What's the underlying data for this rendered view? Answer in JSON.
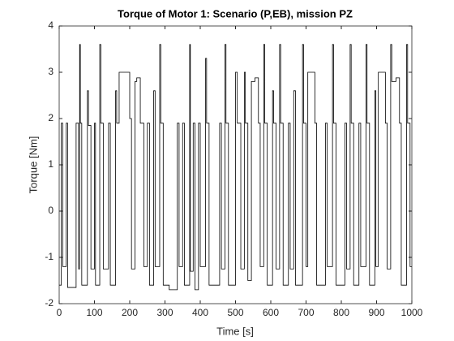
{
  "chart_data": {
    "type": "line",
    "title": "Torque of Motor 1: Scenario (P,EB), mission PZ",
    "xlabel": "Time [s]",
    "ylabel": "Torque [Nm]",
    "x": [
      0,
      6,
      6,
      10,
      10,
      20,
      20,
      24,
      24,
      48,
      48,
      55,
      55,
      58,
      58,
      60,
      60,
      64,
      64,
      80,
      80,
      83,
      83,
      90,
      90,
      100,
      100,
      103,
      103,
      115,
      115,
      118,
      118,
      125,
      125,
      140,
      140,
      145,
      145,
      160,
      160,
      163,
      163,
      170,
      170,
      200,
      200,
      205,
      205,
      215,
      215,
      220,
      220,
      230,
      230,
      240,
      240,
      250,
      250,
      256,
      256,
      268,
      268,
      272,
      272,
      285,
      285,
      288,
      288,
      295,
      295,
      312,
      312,
      335,
      335,
      340,
      340,
      350,
      350,
      355,
      355,
      370,
      370,
      372,
      372,
      380,
      380,
      385,
      385,
      395,
      395,
      400,
      400,
      415,
      415,
      418,
      418,
      425,
      425,
      455,
      455,
      460,
      460,
      470,
      470,
      473,
      473,
      480,
      480,
      500,
      500,
      505,
      505,
      515,
      515,
      525,
      525,
      528,
      528,
      535,
      535,
      545,
      545,
      555,
      555,
      565,
      565,
      570,
      570,
      580,
      580,
      583,
      583,
      590,
      590,
      605,
      605,
      608,
      608,
      615,
      615,
      625,
      625,
      628,
      628,
      635,
      635,
      650,
      650,
      655,
      655,
      665,
      665,
      670,
      670,
      690,
      690,
      693,
      693,
      700,
      700,
      705,
      705,
      725,
      725,
      730,
      730,
      755,
      755,
      760,
      760,
      775,
      775,
      778,
      778,
      785,
      785,
      810,
      810,
      815,
      815,
      825,
      825,
      828,
      828,
      835,
      835,
      850,
      850,
      855,
      855,
      870,
      870,
      873,
      873,
      880,
      880,
      895,
      895,
      898,
      898,
      905,
      905,
      925,
      925,
      930,
      930,
      940,
      940,
      943,
      943,
      955,
      955,
      965,
      965,
      970,
      970,
      985,
      985,
      988,
      988,
      995,
      995,
      1000
    ],
    "series": [
      {
        "name": "Torque",
        "color": "#000000",
        "values": [
          -1.6,
          -1.6,
          1.9,
          1.9,
          -1.2,
          -1.2,
          1.9,
          1.9,
          -1.65,
          -1.65,
          1.9,
          1.9,
          -1.25,
          -1.25,
          3.6,
          3.6,
          1.9,
          1.9,
          -1.6,
          -1.6,
          2.6,
          2.6,
          1.85,
          1.85,
          -1.25,
          -1.25,
          1.9,
          1.9,
          -1.6,
          -1.6,
          3.6,
          3.6,
          1.9,
          1.9,
          -1.25,
          -1.25,
          1.9,
          1.9,
          -1.6,
          -1.6,
          2.6,
          2.6,
          1.9,
          1.9,
          3.0,
          3.0,
          2.0,
          2.0,
          -1.25,
          -1.25,
          2.8,
          2.8,
          2.88,
          2.88,
          1.9,
          1.9,
          -1.2,
          -1.2,
          1.9,
          1.9,
          -1.6,
          -1.6,
          2.6,
          2.6,
          -1.2,
          -1.2,
          3.6,
          3.6,
          1.9,
          1.9,
          -1.6,
          -1.6,
          -1.7,
          -1.7,
          1.9,
          1.9,
          -1.2,
          -1.2,
          1.9,
          1.9,
          -1.6,
          -1.6,
          3.6,
          3.6,
          -1.3,
          -1.3,
          1.9,
          1.9,
          -1.7,
          -1.7,
          1.9,
          1.9,
          -1.2,
          -1.2,
          3.3,
          3.3,
          1.9,
          1.9,
          -1.6,
          -1.6,
          1.9,
          1.9,
          -1.25,
          -1.25,
          3.6,
          3.6,
          1.9,
          1.9,
          -1.6,
          -1.6,
          3.0,
          3.0,
          1.9,
          1.9,
          -1.25,
          -1.25,
          3.0,
          3.0,
          1.9,
          1.9,
          -1.5,
          -1.5,
          2.8,
          2.8,
          2.88,
          2.88,
          1.9,
          1.9,
          -1.2,
          -1.2,
          3.6,
          3.6,
          1.9,
          1.9,
          -1.6,
          -1.6,
          2.6,
          2.6,
          1.9,
          1.9,
          -1.25,
          -1.25,
          3.6,
          3.6,
          1.9,
          1.9,
          -1.6,
          -1.6,
          1.9,
          1.9,
          -1.25,
          -1.25,
          2.6,
          2.6,
          -1.6,
          -1.6,
          3.6,
          3.6,
          1.9,
          1.9,
          -1.2,
          -1.2,
          3.0,
          3.0,
          1.9,
          1.9,
          -1.6,
          -1.6,
          1.9,
          1.9,
          -1.2,
          -1.2,
          3.6,
          3.6,
          1.9,
          1.9,
          -1.6,
          -1.6,
          1.9,
          1.9,
          -1.25,
          -1.25,
          3.6,
          3.6,
          1.9,
          1.9,
          -1.6,
          -1.6,
          1.9,
          1.9,
          -1.2,
          -1.2,
          3.6,
          3.6,
          1.9,
          1.9,
          -1.6,
          -1.6,
          2.6,
          2.6,
          -1.2,
          -1.2,
          3.0,
          3.0,
          1.9,
          1.9,
          -1.25,
          -1.25,
          3.6,
          3.6,
          2.8,
          2.8,
          2.88,
          2.88,
          1.9,
          1.9,
          -1.6,
          -1.6,
          3.6,
          3.6,
          1.9,
          1.9,
          -1.2,
          -1.2
        ]
      }
    ],
    "xlim": [
      0,
      1000
    ],
    "xticks": [
      0,
      100,
      200,
      300,
      400,
      500,
      600,
      700,
      800,
      900,
      1000
    ],
    "ylim": [
      -2,
      4
    ],
    "yticks": [
      -2,
      -1,
      0,
      1,
      2,
      3,
      4
    ],
    "grid": false
  }
}
